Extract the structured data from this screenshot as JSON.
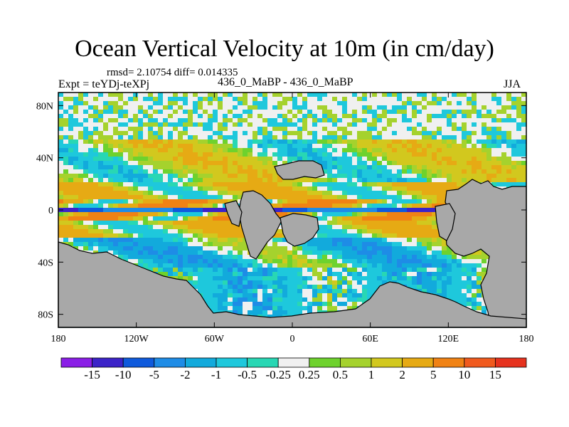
{
  "chart_data": {
    "type": "heatmap",
    "title": "Ocean Vertical Velocity at 10m (in cm/day)",
    "stats_line": "rmsd= 2.10754 diff= 0.014335",
    "experiment_label": "Expt = teYDj-teXPj",
    "comparison_label": "436_0_MaBP - 436_0_MaBP",
    "season": "JJA",
    "x_axis": {
      "range": [
        -180,
        180
      ],
      "ticks": [
        {
          "value": -180,
          "label": "180"
        },
        {
          "value": -120,
          "label": "120W"
        },
        {
          "value": -60,
          "label": "60W"
        },
        {
          "value": 0,
          "label": "0"
        },
        {
          "value": 60,
          "label": "60E"
        },
        {
          "value": 120,
          "label": "120E"
        },
        {
          "value": 180,
          "label": "180"
        }
      ]
    },
    "y_axis": {
      "range": [
        -90,
        90
      ],
      "ticks": [
        {
          "value": 80,
          "label": "80N"
        },
        {
          "value": 40,
          "label": "40N"
        },
        {
          "value": 0,
          "label": "0"
        },
        {
          "value": -40,
          "label": "40S"
        },
        {
          "value": -80,
          "label": "80S"
        }
      ]
    },
    "colorbar": {
      "levels": [
        "-15",
        "-10",
        "-5",
        "-2",
        "-1",
        "-0.5",
        "-0.25",
        "0.25",
        "0.5",
        "1",
        "2",
        "5",
        "10",
        "15"
      ],
      "colors": [
        "#8a1ee6",
        "#3c23c8",
        "#0f5adc",
        "#1e8ce6",
        "#12aadc",
        "#1ec8dc",
        "#28d7b4",
        "#f0f0f0",
        "#6ed22d",
        "#a5d22d",
        "#d2c81e",
        "#e6aa14",
        "#f08214",
        "#f05a1e",
        "#e6321e"
      ]
    },
    "land_color": "#a8a8a8"
  }
}
